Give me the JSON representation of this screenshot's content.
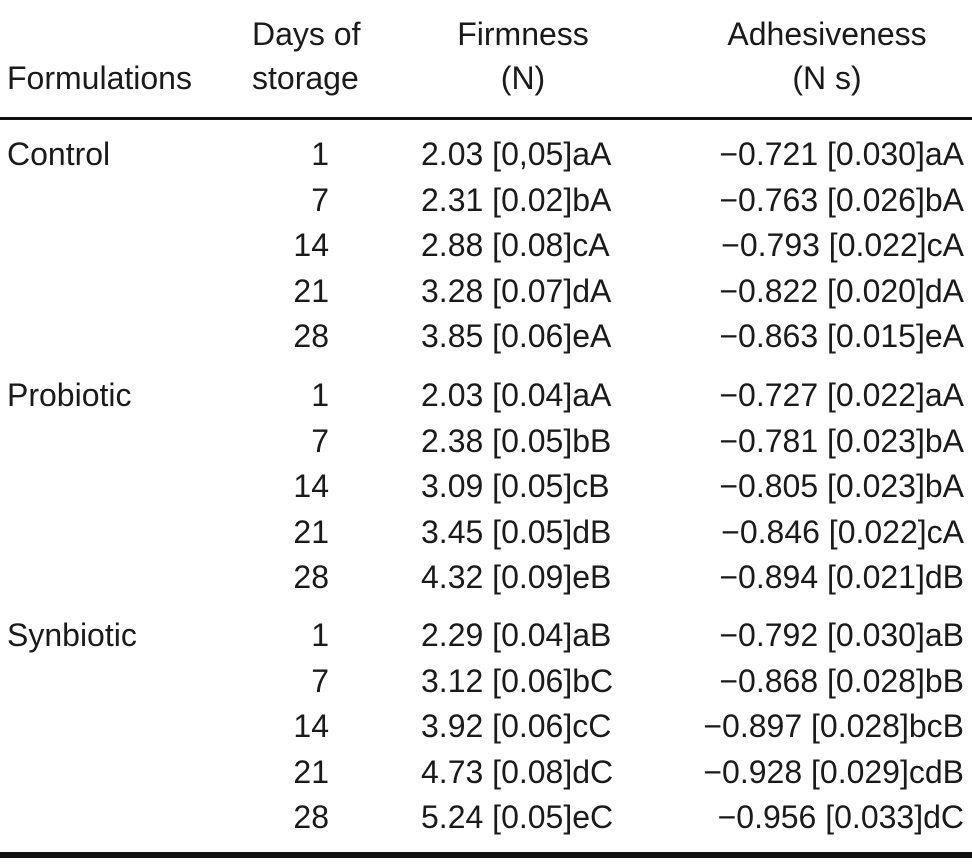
{
  "table": {
    "headers": {
      "formulations": "Formulations",
      "days_line1": "Days of",
      "days_line2": "storage",
      "firmness_line1": "Firmness",
      "firmness_line2": "(N)",
      "adhesiveness_line1": "Adhesiveness",
      "adhesiveness_line2": "(N s)"
    },
    "groups": [
      {
        "label": "Control",
        "rows": [
          {
            "day": "1",
            "firmness": "2.03 [0,05]aA",
            "adhesiveness": "−0.721 [0.030]aA"
          },
          {
            "day": "7",
            "firmness": "2.31 [0.02]bA",
            "adhesiveness": "−0.763 [0.026]bA"
          },
          {
            "day": "14",
            "firmness": "2.88 [0.08]cA",
            "adhesiveness": "−0.793 [0.022]cA"
          },
          {
            "day": "21",
            "firmness": "3.28 [0.07]dA",
            "adhesiveness": "−0.822 [0.020]dA"
          },
          {
            "day": "28",
            "firmness": "3.85 [0.06]eA",
            "adhesiveness": "−0.863 [0.015]eA"
          }
        ]
      },
      {
        "label": "Probiotic",
        "rows": [
          {
            "day": "1",
            "firmness": "2.03 [0.04]aA",
            "adhesiveness": "−0.727 [0.022]aA"
          },
          {
            "day": "7",
            "firmness": "2.38 [0.05]bB",
            "adhesiveness": "−0.781 [0.023]bA"
          },
          {
            "day": "14",
            "firmness": "3.09 [0.05]cB",
            "adhesiveness": "−0.805 [0.023]bA"
          },
          {
            "day": "21",
            "firmness": "3.45 [0.05]dB",
            "adhesiveness": "−0.846 [0.022]cA"
          },
          {
            "day": "28",
            "firmness": "4.32 [0.09]eB",
            "adhesiveness": "−0.894 [0.021]dB"
          }
        ]
      },
      {
        "label": "Synbiotic",
        "rows": [
          {
            "day": "1",
            "firmness": "2.29 [0.04]aB",
            "adhesiveness": "−0.792 [0.030]aB"
          },
          {
            "day": "7",
            "firmness": "3.12 [0.06]bC",
            "adhesiveness": "−0.868 [0.028]bB"
          },
          {
            "day": "14",
            "firmness": "3.92 [0.06]cC",
            "adhesiveness": "−0.897 [0.028]bcB"
          },
          {
            "day": "21",
            "firmness": "4.73 [0.08]dC",
            "adhesiveness": "−0.928 [0.029]cdB"
          },
          {
            "day": "28",
            "firmness": "5.24 [0.05]eC",
            "adhesiveness": "−0.956 [0.033]dC"
          }
        ]
      }
    ]
  }
}
